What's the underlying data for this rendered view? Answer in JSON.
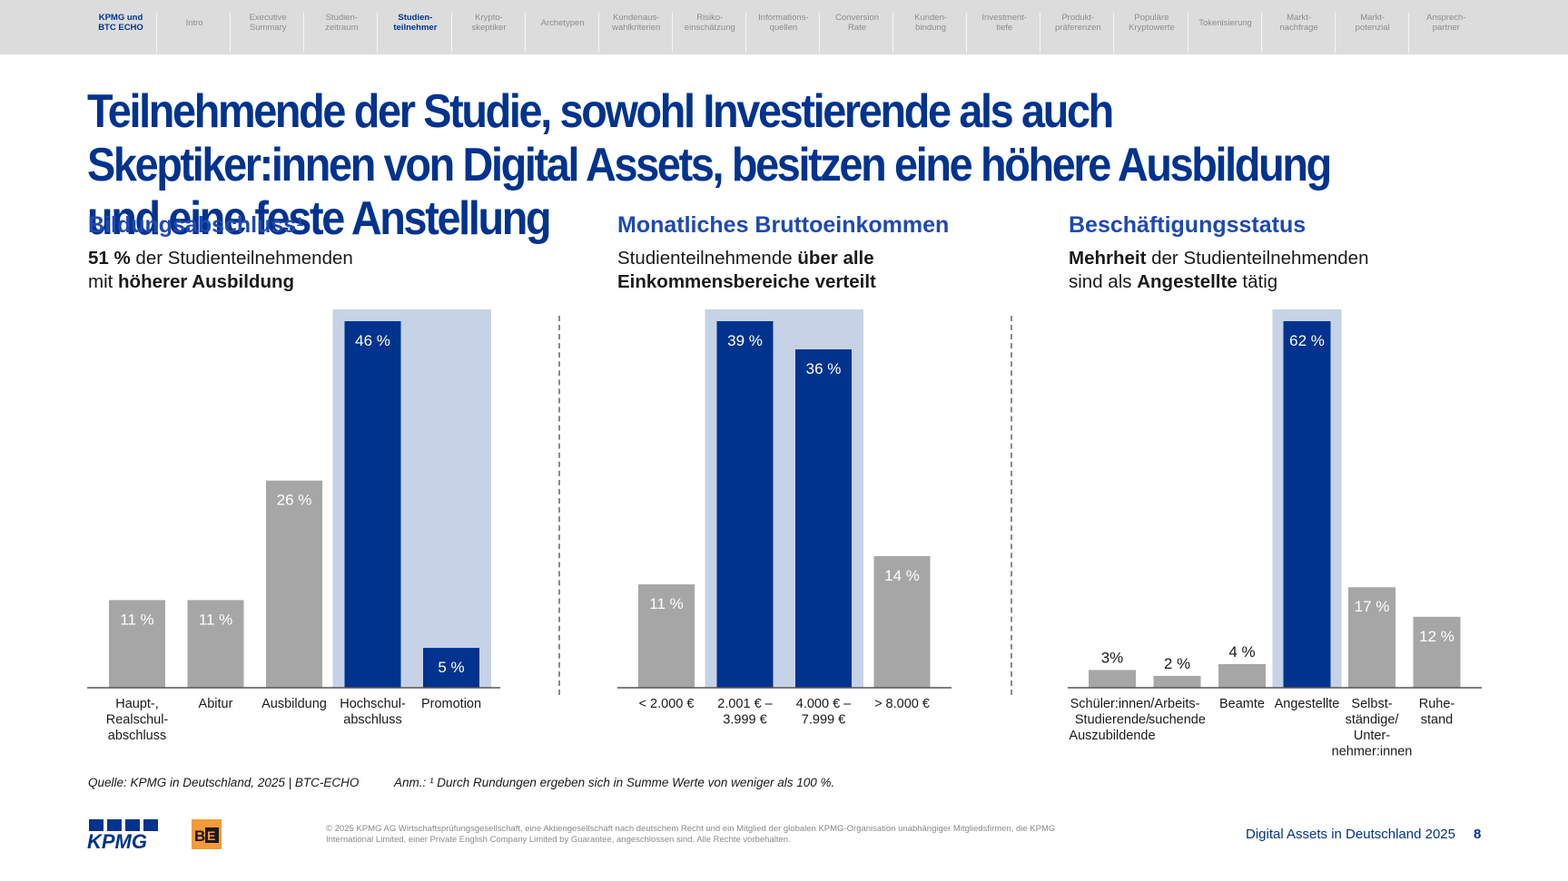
{
  "nav": {
    "items": [
      {
        "label": "KPMG und\nBTC ECHO",
        "active": true
      },
      {
        "label": "Intro",
        "active": false
      },
      {
        "label": "Executive\nSummary",
        "active": false
      },
      {
        "label": "Studien-\nzeitraum",
        "active": false
      },
      {
        "label": "Studien-\nteilnehmer",
        "active": true
      },
      {
        "label": "Krypto-\nskeptiker",
        "active": false
      },
      {
        "label": "Archetypen",
        "active": false
      },
      {
        "label": "Kundenaus-\nwahlkriterien",
        "active": false
      },
      {
        "label": "Risiko-\neinschätzung",
        "active": false
      },
      {
        "label": "Informations-\nquellen",
        "active": false
      },
      {
        "label": "Conversion\nRate",
        "active": false
      },
      {
        "label": "Kunden-\nbindung",
        "active": false
      },
      {
        "label": "Investment-\ntiefe",
        "active": false
      },
      {
        "label": "Produkt-\npräferenzen",
        "active": false
      },
      {
        "label": "Populäre\nKryptowerte",
        "active": false
      },
      {
        "label": "Tokenisierung",
        "active": false
      },
      {
        "label": "Markt-\nnachfrage",
        "active": false
      },
      {
        "label": "Markt-\npotenzial",
        "active": false
      },
      {
        "label": "Ansprech-\npartner",
        "active": false
      }
    ]
  },
  "headline": "Teilnehmende der Studie, sowohl Investierende als auch Skeptiker:innen von Digital Assets, besitzen eine höhere Ausbildung und eine feste Anstellung",
  "sections": [
    {
      "title": "Bildungsabschluss",
      "title_sup": "1",
      "sub": [
        [
          "51 %",
          true
        ],
        [
          " der Studienteilnehmenden\nmit ",
          false
        ],
        [
          "höherer Ausbildung",
          true
        ]
      ]
    },
    {
      "title": "Monatliches Bruttoeinkommen",
      "title_sup": "",
      "sub": [
        [
          "Studienteilnehmende ",
          false
        ],
        [
          "über alle\nEinkommensbereiche verteilt",
          true
        ]
      ]
    },
    {
      "title": "Beschäftigungsstatus",
      "title_sup": "",
      "sub": [
        [
          "Mehrheit",
          true
        ],
        [
          " der Studienteilnehmenden\nsind als ",
          false
        ],
        [
          "Angestellte",
          true
        ],
        [
          " tätig",
          false
        ]
      ]
    }
  ],
  "colors": {
    "primary": "#00338d",
    "accent": "#1e49b0",
    "gray": "#a6a6a6",
    "highlight": "#c6d2e6",
    "text": "#1a1a1a"
  },
  "chart_data": [
    {
      "type": "bar",
      "title": "Bildungsabschluss",
      "unit": "%",
      "categories": [
        "Haupt-,\nRealschul-\nabschluss",
        "Abitur",
        "Ausbildung",
        "Hochschul-\nabschluss",
        "Promotion"
      ],
      "values": [
        11,
        11,
        26,
        46,
        5
      ],
      "labels": [
        "11 %",
        "11 %",
        "26 %",
        "46 %",
        "5 %"
      ],
      "highlighted": [
        false,
        false,
        false,
        true,
        true
      ],
      "ymax": 46
    },
    {
      "type": "bar",
      "title": "Monatliches Bruttoeinkommen",
      "unit": "%",
      "categories": [
        "< 2.000 €",
        "2.001 € –\n3.999 €",
        "4.000 € –\n7.999 €",
        "> 8.000 €"
      ],
      "values": [
        11,
        39,
        36,
        14
      ],
      "labels": [
        "11 %",
        "39 %",
        "36 %",
        "14 %"
      ],
      "highlighted": [
        false,
        true,
        true,
        false
      ],
      "ymax": 39
    },
    {
      "type": "bar",
      "title": "Beschäftigungsstatus",
      "unit": "%",
      "categories": [
        "Schüler:innen/\nStudierende/\nAuszubildende",
        "Arbeits-\nsuchende",
        "Beamte",
        "Angestellte",
        "Selbst-\nständige/\nUnter-\nnehmer:innen",
        "Ruhe-\nstand"
      ],
      "values": [
        3,
        2,
        4,
        62,
        17,
        12
      ],
      "labels": [
        "3%",
        "2 %",
        "4 %",
        "62 %",
        "17 %",
        "12 %"
      ],
      "highlighted": [
        false,
        false,
        false,
        true,
        false,
        false
      ],
      "ymax": 62
    }
  ],
  "source": "Quelle: KPMG in Deutschland, 2025 | BTC-ECHO",
  "note": "Anm.: ¹ Durch Rundungen ergeben sich in Summe Werte von weniger als 100 %.",
  "legal": "© 2025 KPMG AG Wirtschaftsprüfungsgesellschaft, eine Aktiengesellschaft nach deutschem Recht und ein Mitglied der globalen KPMG-Organisation unabhängiger Mitgliedsfirmen, die KPMG International Limited, einer Private English Company Limited by Guarantee, angeschlossen sind. Alle Rechte vorbehalten.",
  "logos": {
    "kpmg": "KPMG",
    "btc": "B E"
  },
  "footer": {
    "doc_title": "Digital Assets in Deutschland 2025",
    "page_number": "8"
  }
}
